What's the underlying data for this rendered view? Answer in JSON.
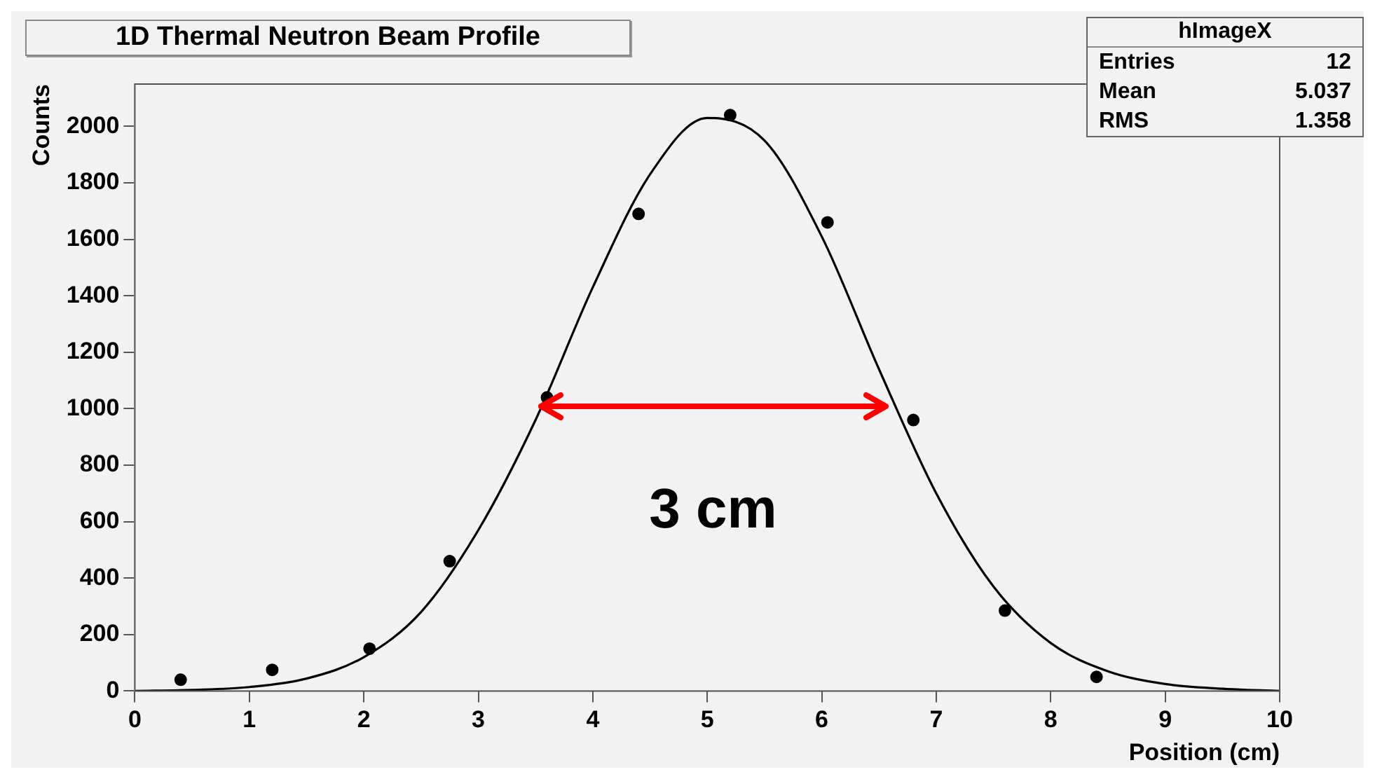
{
  "chart_data": {
    "type": "scatter",
    "title": "1D Thermal Neutron Beam Profile",
    "xlabel": "Position (cm)",
    "ylabel": "Counts",
    "xlim": [
      0,
      10
    ],
    "xticks": [
      0,
      1,
      2,
      3,
      4,
      5,
      6,
      7,
      8,
      9,
      10
    ],
    "ylim": [
      0,
      2150
    ],
    "yticks": [
      0,
      200,
      400,
      600,
      800,
      1000,
      1200,
      1400,
      1600,
      1800,
      2000
    ],
    "grid": false,
    "legend": false,
    "marker": "circle",
    "annotations": [
      "3 cm",
      "hImageX",
      "Entries 12",
      "Mean 5.037",
      "RMS 1.358"
    ],
    "series": [
      {
        "color": "#000000",
        "x": [
          0.4,
          1.2,
          2.05,
          2.75,
          3.6,
          4.4,
          5.2,
          6.05,
          6.8,
          7.6,
          8.4
        ],
        "values": [
          40,
          75,
          150,
          460,
          1040,
          1690,
          2040,
          1660,
          960,
          285,
          50
        ]
      },
      {
        "type": "line",
        "color": "#000000",
        "marker": "none",
        "line_style": "solid",
        "x": [
          0,
          0.5,
          1,
          1.5,
          2,
          2.5,
          3,
          3.5,
          4,
          4.5,
          5,
          5.5,
          6,
          6.5,
          7,
          7.5,
          8,
          8.5,
          9,
          9.5,
          10
        ],
        "values": [
          0,
          4,
          14,
          44,
          120,
          280,
          570,
          960,
          1430,
          1830,
          2030,
          1950,
          1610,
          1140,
          700,
          370,
          170,
          70,
          25,
          8,
          0
        ]
      }
    ]
  }
}
